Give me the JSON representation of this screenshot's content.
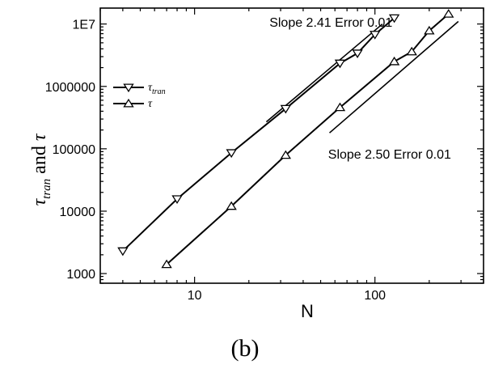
{
  "chart_data": {
    "type": "line",
    "scale": {
      "x": "log",
      "y": "log"
    },
    "xlim": [
      3,
      400
    ],
    "ylim": [
      700,
      18000000
    ],
    "xlabel": "N",
    "ylabel": {
      "sym1": "τ",
      "sub1": "tran",
      "mid": " and ",
      "sym2": "τ"
    },
    "x_ticks": [
      {
        "value": 10,
        "label": "10"
      },
      {
        "value": 100,
        "label": "100"
      }
    ],
    "y_ticks": [
      {
        "value": 1000,
        "label": "1000"
      },
      {
        "value": 10000,
        "label": "10000"
      },
      {
        "value": 100000,
        "label": "100000"
      },
      {
        "value": 1000000,
        "label": "1000000"
      },
      {
        "value": 10000000,
        "label": "1E7"
      }
    ],
    "series": [
      {
        "name": "τ_tran",
        "name_parts": {
          "sym": "τ",
          "sub": "tran"
        },
        "marker": "triangle-down",
        "x": [
          4,
          8,
          16,
          32,
          64,
          80,
          100,
          128
        ],
        "y": [
          2300,
          15700,
          86000,
          440000,
          2350000,
          3400000,
          6800000,
          12500000
        ]
      },
      {
        "name": "τ",
        "name_parts": {
          "sym": "τ",
          "sub": ""
        },
        "marker": "triangle-up",
        "x": [
          7,
          16,
          32,
          64,
          128,
          160,
          200,
          256
        ],
        "y": [
          1400,
          12000,
          79000,
          460000,
          2500000,
          3600000,
          7800000,
          14500000
        ]
      }
    ],
    "fit_lines": [
      {
        "x": [
          25,
          110
        ],
        "y": [
          270000,
          10000000
        ]
      },
      {
        "x": [
          56,
          290
        ],
        "y": [
          180000,
          11000000
        ]
      }
    ],
    "annotations": [
      {
        "text": "Slope 2.41 Error 0.01",
        "x": 26,
        "y": 9000000
      },
      {
        "text": "Slope 2.50 Error 0.01",
        "x": 55,
        "y": 70000
      }
    ],
    "legend_position": "top-left",
    "grid": false,
    "caption": "(b)",
    "colors": {
      "line": "#000000",
      "marker_fill": "#ffffff",
      "background": "#ffffff"
    }
  }
}
